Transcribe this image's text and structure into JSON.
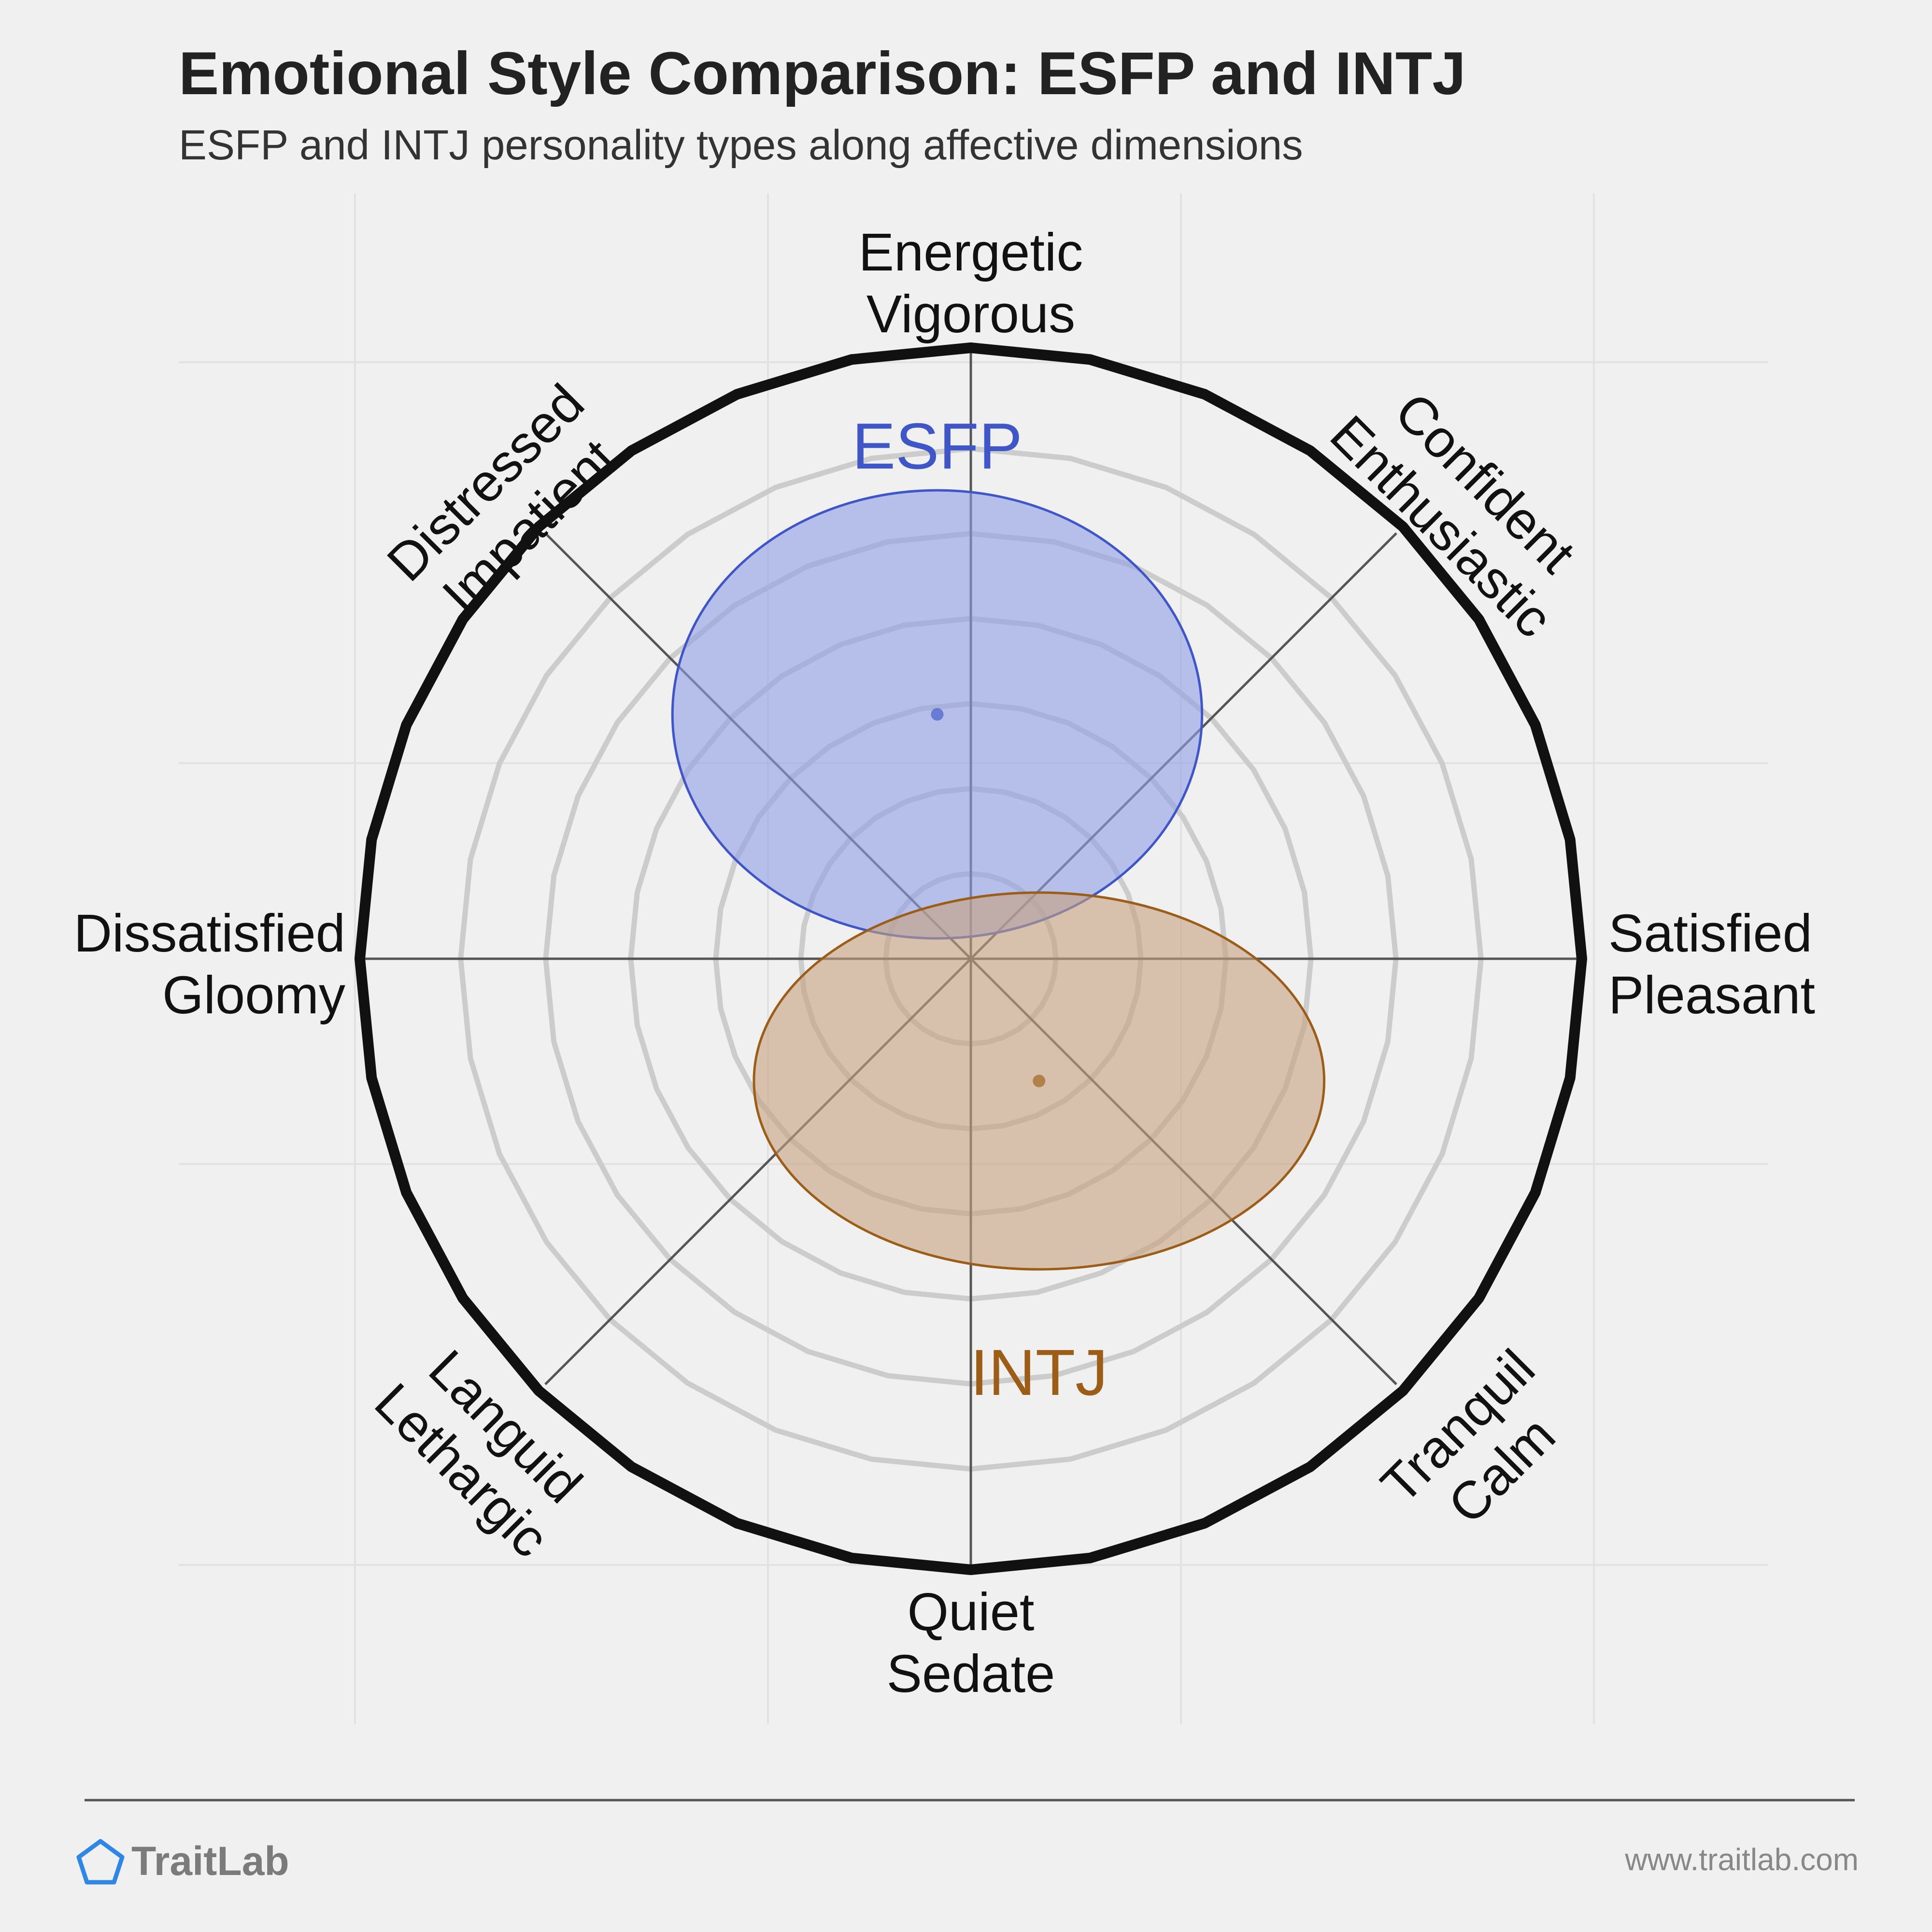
{
  "header": {
    "title": "Emotional Style Comparison: ESFP and INTJ",
    "subtitle": "ESFP and INTJ personality types along affective dimensions"
  },
  "chart_data": {
    "type": "scatter",
    "axes": {
      "top": [
        "Energetic",
        "Vigorous"
      ],
      "top_right": [
        "Confident",
        "Enthusiastic"
      ],
      "right": [
        "Satisfied",
        "Pleasant"
      ],
      "bottom_right": [
        "Tranquil",
        "Calm"
      ],
      "bottom": [
        "Quiet",
        "Sedate"
      ],
      "bottom_left": [
        "Languid",
        "Lethargic"
      ],
      "left": [
        "Dissatisfied",
        "Gloomy"
      ],
      "top_left": [
        "Distressed",
        "Impatient"
      ]
    },
    "x_range": [
      -6,
      6
    ],
    "y_range": [
      -6,
      6
    ],
    "ring_count": 6,
    "series": [
      {
        "name": "ESFP",
        "x": -0.33,
        "y": 2.4,
        "spread_x": 2.6,
        "spread_y": 2.2,
        "color": "#3f56c9",
        "fill": "#8f9fe6"
      },
      {
        "name": "INTJ",
        "x": 0.67,
        "y": -1.2,
        "spread_x": 2.8,
        "spread_y": 1.85,
        "color": "#9c5d17",
        "fill": "#c6a17f"
      }
    ]
  },
  "footer": {
    "brand": "TraitLab",
    "url": "www.traitlab.com"
  }
}
